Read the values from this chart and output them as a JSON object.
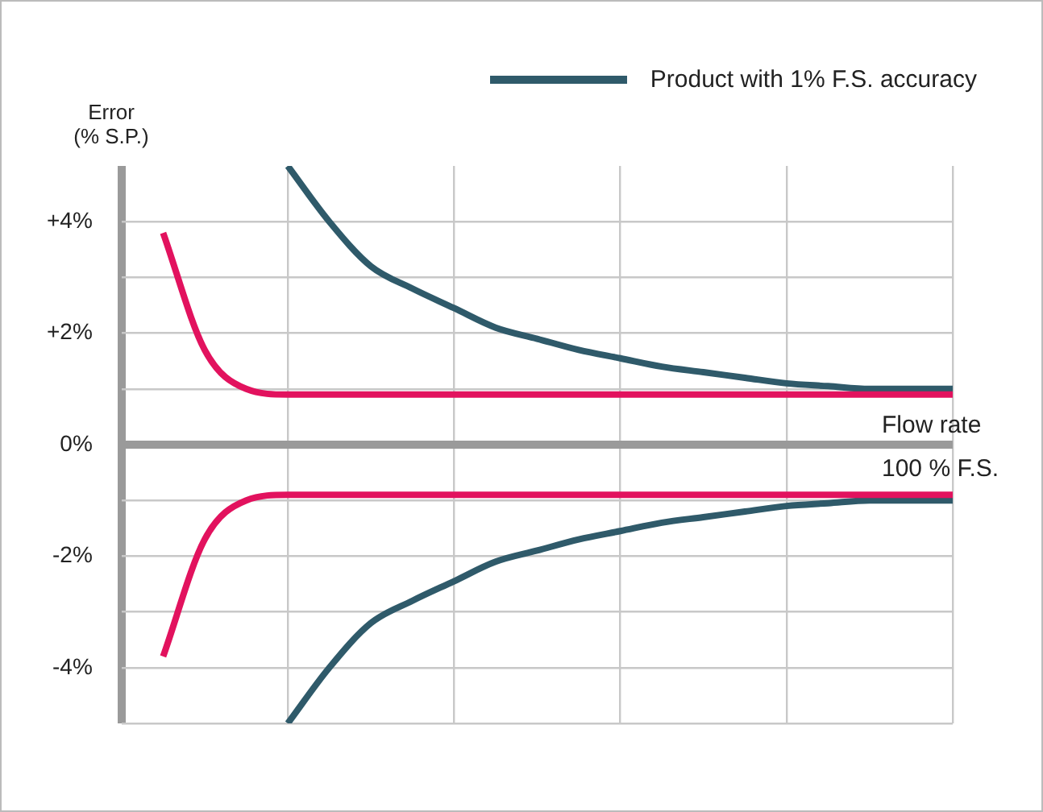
{
  "chart_data": {
    "type": "line",
    "ylabel": "Error\n(% S.P.)",
    "categories": [
      null,
      null,
      null,
      null,
      null,
      null,
      null,
      null,
      null,
      null,
      null,
      null,
      null,
      null,
      null,
      null,
      null,
      null,
      null,
      null,
      null
    ],
    "series": [
      {
        "color": "#e2125e",
        "values": [
          null,
          3.8,
          1.7,
          1.0,
          0.9,
          0.9,
          0.9,
          0.9,
          0.9,
          0.9,
          0.9,
          0.9,
          0.9,
          0.9,
          0.9,
          0.9,
          0.9,
          0.9,
          0.9,
          0.9,
          0.9
        ]
      },
      {
        "color": "#e2125e",
        "values": [
          null,
          -3.8,
          -1.7,
          -1.0,
          -0.9,
          -0.9,
          -0.9,
          -0.9,
          -0.9,
          -0.9,
          -0.9,
          -0.9,
          -0.9,
          -0.9,
          -0.9,
          -0.9,
          -0.9,
          -0.9,
          -0.9,
          -0.9,
          -0.9
        ]
      },
      {
        "name": "Product with 1% F.S. accuracy",
        "color": "#2f5a6a",
        "values": [
          null,
          null,
          null,
          null,
          5.0,
          4.0,
          3.2,
          2.8,
          2.45,
          2.1,
          1.9,
          1.7,
          1.55,
          1.4,
          1.3,
          1.2,
          1.1,
          1.05,
          1.0,
          1.0,
          1.0
        ]
      },
      {
        "color": "#2f5a6a",
        "values": [
          null,
          null,
          null,
          null,
          -5.0,
          -4.0,
          -3.2,
          -2.8,
          -2.45,
          -2.1,
          -1.9,
          -1.7,
          -1.55,
          -1.4,
          -1.3,
          -1.2,
          -1.1,
          -1.05,
          -1.0,
          -1.0,
          -1.0
        ]
      }
    ],
    "ylim": [
      -5,
      5
    ],
    "yticks": [
      {
        "value": -5,
        "label": null
      },
      {
        "value": -4,
        "label": "-4%"
      },
      {
        "value": -3,
        "label": null
      },
      {
        "value": -2,
        "label": "-2%"
      },
      {
        "value": -1,
        "label": null
      },
      {
        "value": 0,
        "label": "0%"
      },
      {
        "value": 1,
        "label": null
      },
      {
        "value": 2,
        "label": "+2%"
      },
      {
        "value": 3,
        "label": null
      },
      {
        "value": 4,
        "label": "+4%"
      }
    ],
    "grid": true,
    "legend": "top right",
    "marker": "none",
    "line_style": "solid",
    "annotations": [
      "Flow rate",
      "100 % F.S."
    ]
  }
}
